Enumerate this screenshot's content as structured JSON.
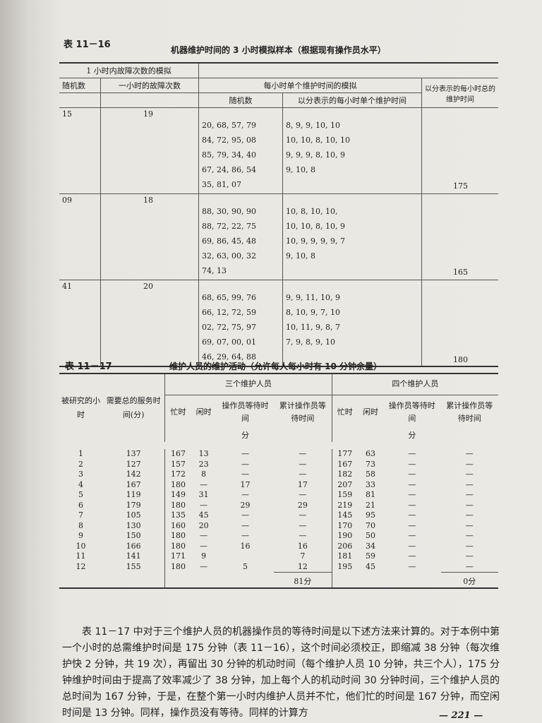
{
  "table16": {
    "label": "表 11－16",
    "title": "机器维护时间的 3 小时模拟样本（根据现有操作员水平）",
    "headers": {
      "group1": "1 小时内故障次数的模拟",
      "random": "随机数",
      "failures": "一小时的故障次数",
      "group2": "每小时单个维护时间的模拟",
      "random2": "随机数",
      "single": "以分表示的每小时单个维护时间",
      "total": "以分表示的每小时总的维护时间"
    },
    "rows": [
      {
        "random": "15",
        "failures": "19",
        "random2": [
          "20, 68, 57, 79",
          "84, 72, 95, 08",
          "85, 79, 34, 40",
          "67, 24, 86, 54",
          "35, 81, 07"
        ],
        "times": [
          "8, 9, 9, 10, 10",
          "10, 10, 8, 10, 10",
          "9, 9, 9, 8, 10, 9",
          "9, 10, 8"
        ],
        "total": "175"
      },
      {
        "random": "09",
        "failures": "18",
        "random2": [
          "88, 30, 90, 90",
          "88, 72, 22, 75",
          "69, 86, 45, 48",
          "32, 63, 00, 32",
          "74, 13"
        ],
        "times": [
          "10, 8, 10, 10,",
          "10, 10, 8, 10, 9",
          "10, 9, 9, 9, 9, 7",
          "9, 10, 8"
        ],
        "total": "165"
      },
      {
        "random": "41",
        "failures": "20",
        "random2": [
          "68, 65, 99, 76",
          "66, 12, 72, 59",
          "02, 72, 75, 97",
          "69, 07, 00, 01",
          "46, 29, 64, 88"
        ],
        "times": [
          "9, 9, 11, 10, 9",
          "8, 10, 9, 7, 10",
          "10, 11, 9, 8, 7",
          "7, 9, 8, 9, 10"
        ],
        "total": "180"
      }
    ]
  },
  "table17": {
    "label": "表 11－17",
    "title": "维护人员的维护活动（允许每人每小时有 10 分钟余量）",
    "headers": {
      "hour": "被研究的小时",
      "need": "需要总的服务时间(分)",
      "three": "三个维护人员",
      "four": "四个维护人员",
      "busy": "忙时",
      "idle": "闲时",
      "wait": "操作员等待时间",
      "cum": "累计操作员等待时间",
      "unit": "分"
    },
    "rows": [
      [
        "1",
        "137",
        "167",
        "13",
        "—",
        "—",
        "177",
        "63",
        "—",
        "—"
      ],
      [
        "2",
        "127",
        "157",
        "23",
        "—",
        "—",
        "167",
        "73",
        "—",
        "—"
      ],
      [
        "3",
        "142",
        "172",
        "8",
        "—",
        "—",
        "182",
        "58",
        "—",
        "—"
      ],
      [
        "4",
        "167",
        "180",
        "—",
        "17",
        "17",
        "207",
        "33",
        "—",
        "—"
      ],
      [
        "5",
        "119",
        "149",
        "31",
        "—",
        "—",
        "159",
        "81",
        "—",
        "—"
      ],
      [
        "6",
        "179",
        "180",
        "—",
        "29",
        "29",
        "219",
        "21",
        "—",
        "—"
      ],
      [
        "7",
        "105",
        "135",
        "45",
        "—",
        "—",
        "145",
        "95",
        "—",
        "—"
      ],
      [
        "8",
        "130",
        "160",
        "20",
        "—",
        "—",
        "170",
        "70",
        "—",
        "—"
      ],
      [
        "9",
        "150",
        "180",
        "—",
        "—",
        "—",
        "190",
        "50",
        "—",
        "—"
      ],
      [
        "10",
        "166",
        "180",
        "—",
        "16",
        "16",
        "206",
        "34",
        "—",
        "—"
      ],
      [
        "11",
        "141",
        "171",
        "9",
        "",
        "7",
        "181",
        "59",
        "—",
        "—"
      ],
      [
        "12",
        "155",
        "180",
        "—",
        "5",
        "12",
        "195",
        "45",
        "—",
        "—"
      ]
    ],
    "total3": "81分",
    "total4": "0分"
  },
  "paragraph": "表 11－17 中对于三个维护人员的机器操作员的等待时间是以下述方法来计算的。对于本例中第一个小时的总需维护时间是 175 分钟（表 11－16），这个时间必须校正，即缩减 38 分钟（每次维护快 2 分钟，共 19 次），再留出 30 分钟的机动时间（每个维护人员 10 分钟，共三个人），175 分钟维护时间由于提高了效率减少了 38 分钟，加上每个人的机动时间 30 分钟时间，三个维护人员的总时间为 167 分钟，于是，在整个第一小时内维护人员并不忙，他们忙的时间是 167 分钟，而空闲时间是 13 分钟。同样，操作员没有等待。同样的计算方",
  "page": "221"
}
